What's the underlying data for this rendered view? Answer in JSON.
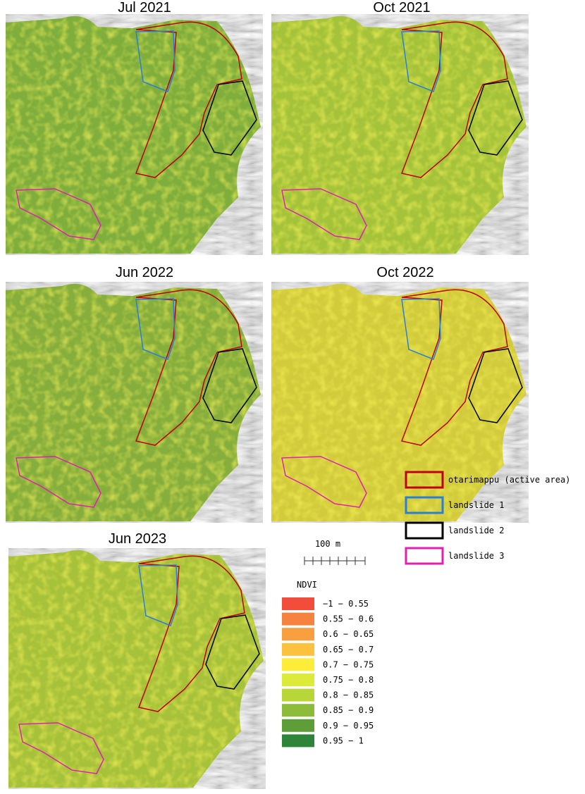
{
  "panels": [
    {
      "title": "Jul 2021"
    },
    {
      "title": "Oct  2021"
    },
    {
      "title": "Jun 2022"
    },
    {
      "title": "Oct 2022"
    },
    {
      "title": "Jun 2023"
    }
  ],
  "scale_bar": {
    "label": "100 m"
  },
  "legend": {
    "title": "NDVI",
    "items": [
      {
        "label": "−1 − 0.55",
        "color": "#f24c3a"
      },
      {
        "label": "0.55 − 0.6",
        "color": "#f5823e"
      },
      {
        "label": "0.6 − 0.65",
        "color": "#f8a040"
      },
      {
        "label": "0.65 − 0.7",
        "color": "#fcc23e"
      },
      {
        "label": "0.7 − 0.75",
        "color": "#fdec3a"
      },
      {
        "label": "0.75 − 0.8",
        "color": "#dcea3a"
      },
      {
        "label": "0.8 − 0.85",
        "color": "#b8d638"
      },
      {
        "label": "0.85 − 0.9",
        "color": "#8cbc3a"
      },
      {
        "label": "0.9 − 0.95",
        "color": "#5e9e38"
      },
      {
        "label": "0.95 − 1",
        "color": "#2e8438"
      }
    ]
  },
  "outline_legend": [
    {
      "label": "otarimappu (active area)",
      "color": "#c00000"
    },
    {
      "label": "landslide 1",
      "color": "#2a7fd4"
    },
    {
      "label": "landslide 2",
      "color": "#000000"
    },
    {
      "label": "landslide 3",
      "color": "#e020b0"
    }
  ]
}
